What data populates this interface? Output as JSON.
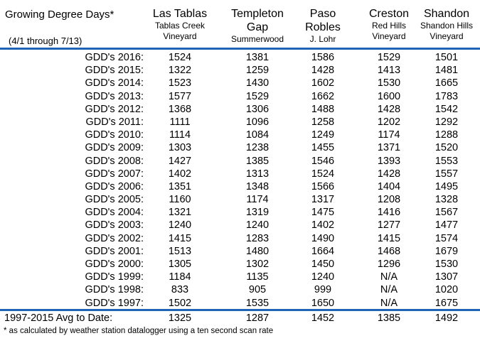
{
  "header": {
    "title": "Growing Degree Days*",
    "subtitle": "(4/1 through 7/13)"
  },
  "columns": [
    {
      "line1": "Las Tablas",
      "line2": "Tablas Creek",
      "line3": "Vineyard"
    },
    {
      "line1": "Templeton",
      "line2": "Gap",
      "line3": "Summerwood"
    },
    {
      "line1": "Paso",
      "line2": "Robles",
      "line3": "J. Lohr"
    },
    {
      "line1": "Creston",
      "line2": "Red Hills",
      "line3": "Vineyard"
    },
    {
      "line1": "Shandon",
      "line2": "Shandon Hills",
      "line3": "Vineyard"
    }
  ],
  "chart_data": {
    "type": "table",
    "rows": [
      {
        "label": "GDD's 2016:",
        "values": [
          "1524",
          "1381",
          "1586",
          "1529",
          "1501"
        ]
      },
      {
        "label": "GDD's 2015:",
        "values": [
          "1322",
          "1259",
          "1428",
          "1413",
          "1481"
        ]
      },
      {
        "label": "GDD's 2014:",
        "values": [
          "1523",
          "1430",
          "1602",
          "1530",
          "1665"
        ]
      },
      {
        "label": "GDD's 2013:",
        "values": [
          "1577",
          "1529",
          "1662",
          "1600",
          "1783"
        ]
      },
      {
        "label": "GDD's 2012:",
        "values": [
          "1368",
          "1306",
          "1488",
          "1428",
          "1542"
        ]
      },
      {
        "label": "GDD's 2011:",
        "values": [
          "1111",
          "1096",
          "1258",
          "1202",
          "1292"
        ]
      },
      {
        "label": "GDD's 2010:",
        "values": [
          "1114",
          "1084",
          "1249",
          "1174",
          "1288"
        ]
      },
      {
        "label": "GDD's 2009:",
        "values": [
          "1303",
          "1238",
          "1455",
          "1371",
          "1520"
        ]
      },
      {
        "label": "GDD's 2008:",
        "values": [
          "1427",
          "1385",
          "1546",
          "1393",
          "1553"
        ]
      },
      {
        "label": "GDD's 2007:",
        "values": [
          "1402",
          "1313",
          "1524",
          "1428",
          "1557"
        ]
      },
      {
        "label": "GDD's 2006:",
        "values": [
          "1351",
          "1348",
          "1566",
          "1404",
          "1495"
        ]
      },
      {
        "label": "GDD's 2005:",
        "values": [
          "1160",
          "1174",
          "1317",
          "1208",
          "1328"
        ]
      },
      {
        "label": "GDD's 2004:",
        "values": [
          "1321",
          "1319",
          "1475",
          "1416",
          "1567"
        ]
      },
      {
        "label": "GDD's 2003:",
        "values": [
          "1240",
          "1240",
          "1402",
          "1277",
          "1477"
        ]
      },
      {
        "label": "GDD's 2002:",
        "values": [
          "1415",
          "1283",
          "1490",
          "1415",
          "1574"
        ]
      },
      {
        "label": "GDD's 2001:",
        "values": [
          "1513",
          "1480",
          "1664",
          "1468",
          "1679"
        ]
      },
      {
        "label": "GDD's 2000:",
        "values": [
          "1305",
          "1302",
          "1450",
          "1296",
          "1530"
        ]
      },
      {
        "label": "GDD's 1999:",
        "values": [
          "1184",
          "1135",
          "1240",
          "N/A",
          "1307"
        ]
      },
      {
        "label": "GDD's 1998:",
        "values": [
          "833",
          "905",
          "999",
          "N/A",
          "1020"
        ]
      },
      {
        "label": "GDD's 1997:",
        "values": [
          "1502",
          "1535",
          "1650",
          "N/A",
          "1675"
        ]
      }
    ],
    "average": {
      "label": "1997-2015 Avg to Date:",
      "values": [
        "1325",
        "1287",
        "1452",
        "1385",
        "1492"
      ]
    },
    "accent_color": "#1f64b4"
  },
  "footnote": "* as calculated by weather station datalogger using a ten second scan rate"
}
